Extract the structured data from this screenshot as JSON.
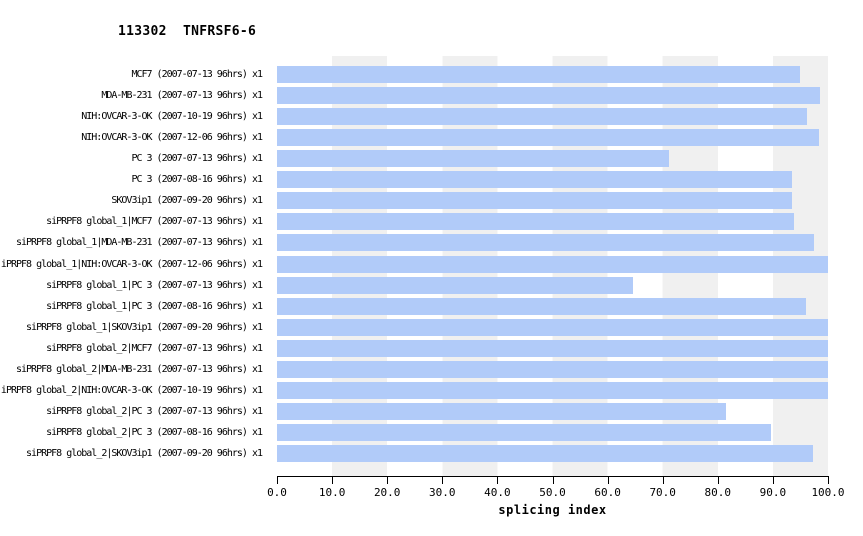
{
  "title": "113302  TNFRSF6-6",
  "chart_data": {
    "type": "bar",
    "orientation": "horizontal",
    "title": "113302  TNFRSF6-6",
    "xlabel": "splicing index",
    "xlim": [
      0,
      100
    ],
    "x_tick_labels": [
      "0.0",
      "10.0",
      "20.0",
      "30.0",
      "40.0",
      "50.0",
      "60.0",
      "70.0",
      "80.0",
      "90.0",
      "100.0"
    ],
    "grid": "alternating vertical decade bands",
    "legend": "none",
    "bar_color": "#b1cbf9",
    "band_color": "#f0f0f0",
    "categories": [
      "MCF7 (2007-07-13 96hrs) x1",
      "MDA-MB-231 (2007-07-13 96hrs) x1",
      "NIH:OVCAR-3-OK (2007-10-19 96hrs) x1",
      "NIH:OVCAR-3-OK (2007-12-06 96hrs) x1",
      "PC 3 (2007-07-13 96hrs) x1",
      "PC 3 (2007-08-16 96hrs) x1",
      "SKOV3ip1 (2007-09-20 96hrs) x1",
      "siPRPF8 global_1|MCF7 (2007-07-13 96hrs) x1",
      "siPRPF8 global_1|MDA-MB-231 (2007-07-13 96hrs) x1",
      "iPRPF8 global_1|NIH:OVCAR-3-OK (2007-12-06 96hrs) x1",
      "siPRPF8 global_1|PC 3 (2007-07-13 96hrs) x1",
      "siPRPF8 global_1|PC 3 (2007-08-16 96hrs) x1",
      "siPRPF8 global_1|SKOV3ip1 (2007-09-20 96hrs) x1",
      "siPRPF8 global_2|MCF7 (2007-07-13 96hrs) x1",
      "siPRPF8 global_2|MDA-MB-231 (2007-07-13 96hrs) x1",
      "iPRPF8 global_2|NIH:OVCAR-3-OK (2007-10-19 96hrs) x1",
      "siPRPF8 global_2|PC 3 (2007-07-13 96hrs) x1",
      "siPRPF8 global_2|PC 3 (2007-08-16 96hrs) x1",
      "siPRPF8 global_2|SKOV3ip1 (2007-09-20 96hrs) x1"
    ],
    "values": [
      94.9,
      98.5,
      96.2,
      98.4,
      71.1,
      93.5,
      93.5,
      93.8,
      97.5,
      100.0,
      64.7,
      96.0,
      100.0,
      100.0,
      100.0,
      100.0,
      81.5,
      89.6,
      97.3
    ]
  }
}
